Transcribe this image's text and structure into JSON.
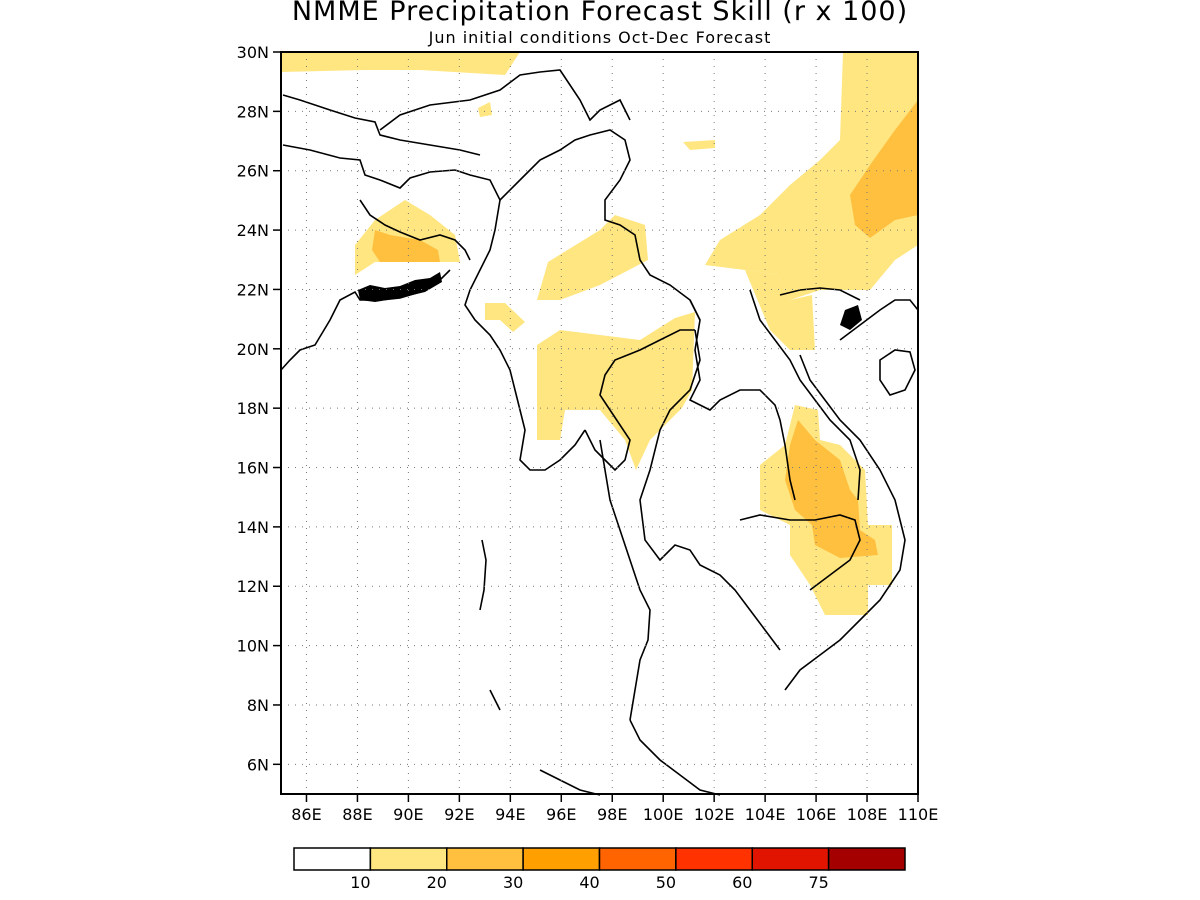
{
  "title": "NMME Precipitation Forecast Skill (r x 100)",
  "subtitle": "Jun initial conditions  Oct-Dec Forecast",
  "map": {
    "lon_range": [
      85,
      110
    ],
    "lat_range": [
      5,
      30
    ],
    "lat_ticks": [
      "6N",
      "8N",
      "10N",
      "12N",
      "14N",
      "16N",
      "18N",
      "20N",
      "22N",
      "24N",
      "26N",
      "28N",
      "30N"
    ],
    "lon_ticks": [
      "86E",
      "88E",
      "90E",
      "92E",
      "94E",
      "96E",
      "98E",
      "100E",
      "102E",
      "104E",
      "106E",
      "108E",
      "110E"
    ],
    "grid": "dotted"
  },
  "colorbar": {
    "labels": [
      "10",
      "20",
      "30",
      "40",
      "50",
      "60",
      "75"
    ],
    "colors": [
      "#ffffff",
      "#ffe680",
      "#ffc040",
      "#ffa000",
      "#ff6400",
      "#ff3200",
      "#e11400",
      "#a50000"
    ]
  }
}
